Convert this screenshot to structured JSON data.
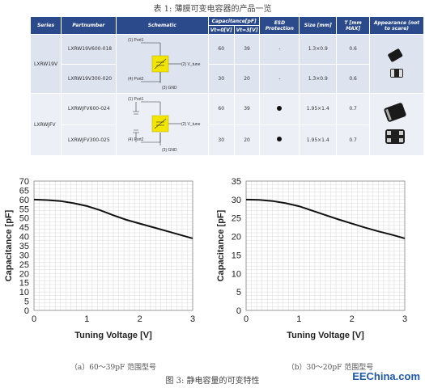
{
  "table_caption": "表 1: 薄膜可变电容器的产品一览",
  "table": {
    "headers": {
      "series": "Series",
      "partnumber": "Partnumber",
      "schematic": "Schematic",
      "capacitance": "Capacitance[pF]",
      "vt0": "Vt=0[V]",
      "vt3": "Vt=3[V]",
      "esd": "ESD Protection",
      "size": "Size [mm]",
      "t": "T [mm MAX]",
      "appearance": "Appearance (not to scare)"
    },
    "rows": [
      {
        "series": "LXRW19V",
        "partnumber": "LXRW19V600-018",
        "vt0": "60",
        "vt3": "39",
        "esd": "-",
        "size": "1.3×0.9",
        "t": "0.6"
      },
      {
        "series": "",
        "partnumber": "LXRW19V300-020",
        "vt0": "30",
        "vt3": "20",
        "esd": "-",
        "size": "1.3×0.9",
        "t": "0.6"
      },
      {
        "series": "LXRWJFV",
        "partnumber": "LXRWJFV600-024",
        "vt0": "60",
        "vt3": "39",
        "esd": "dot",
        "size": "1.95×1.4",
        "t": "0.7"
      },
      {
        "series": "",
        "partnumber": "LXRWJFV300-025",
        "vt0": "30",
        "vt3": "20",
        "esd": "dot",
        "size": "1.95×1.4",
        "t": "0.7"
      }
    ],
    "schematic_labels": {
      "port1": "(1) Port1",
      "port2": "(4) Port2",
      "vtune": "(2) V_tune",
      "gnd": "(3) GND"
    }
  },
  "chart_data": [
    {
      "type": "line",
      "xlabel": "Tuning Voltage [V]",
      "ylabel": "Capacitance [pF]",
      "xlim": [
        0,
        3
      ],
      "ylim": [
        0,
        70
      ],
      "xticks": [
        0,
        1,
        2,
        3
      ],
      "yticks": [
        0,
        5,
        10,
        15,
        20,
        25,
        30,
        35,
        40,
        45,
        50,
        55,
        60,
        65,
        70
      ],
      "grid": true,
      "x": [
        0,
        0.25,
        0.5,
        0.75,
        1.0,
        1.25,
        1.5,
        1.75,
        2.0,
        2.25,
        2.5,
        2.75,
        3.0
      ],
      "y": [
        60,
        59.7,
        59.2,
        58,
        56.5,
        54.2,
        51.5,
        49,
        47,
        45,
        43,
        41,
        39
      ],
      "caption": "（a）60～39pF 范围型号"
    },
    {
      "type": "line",
      "xlabel": "Tuning Voltage [V]",
      "ylabel": "Capacitance [pF]",
      "xlim": [
        0,
        3
      ],
      "ylim": [
        0,
        35
      ],
      "xticks": [
        0,
        1,
        2,
        3
      ],
      "yticks": [
        0,
        5,
        10,
        15,
        20,
        25,
        30,
        35
      ],
      "grid": true,
      "x": [
        0,
        0.25,
        0.5,
        0.75,
        1.0,
        1.25,
        1.5,
        1.75,
        2.0,
        2.25,
        2.5,
        2.75,
        3.0
      ],
      "y": [
        30,
        29.9,
        29.6,
        29,
        28.2,
        27,
        25.8,
        24.6,
        23.5,
        22.4,
        21.4,
        20.5,
        19.5
      ],
      "caption": "（b）30～20pF 范围型号"
    }
  ],
  "figure_caption": "图 3: 静电容量的可变特性",
  "watermark": "EEChina.com",
  "colors": {
    "header_bg": "#2b4a8c",
    "row_group_a": "#dde3ef",
    "row_group_b": "#ecf0f6",
    "schematic_box": "#f2e600"
  }
}
